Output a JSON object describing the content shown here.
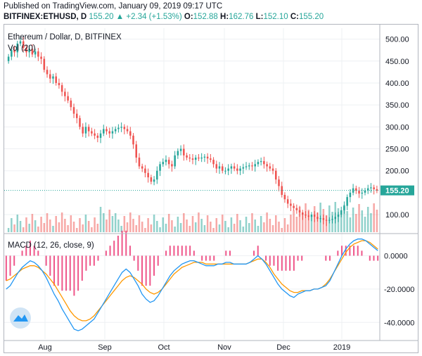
{
  "header": {
    "published": "Published on TradingView.com, January 09, 2019 09:17 UTC",
    "symbol": "BITFINEX:ETHUSD, D",
    "last": "155.20",
    "change": "+2.34 (+1.53%)",
    "o_label": "O:",
    "o_value": "152.88",
    "h_label": "H:",
    "h_value": "162.76",
    "l_label": "L:",
    "l_value": "152.10",
    "c_label": "C:",
    "c_value": "155.20",
    "up_arrow": "▲"
  },
  "colors": {
    "up": "#26a69a",
    "down": "#ef5350",
    "macd_line": "#2196f3",
    "signal_line": "#ff9800",
    "histogram": "#e91e63",
    "price_line": "#26a69a"
  },
  "chart_data": [
    {
      "type": "candlestick",
      "title": "Ethereum / Dollar, D, BITFINEX",
      "indicator_label": "Vol (20)",
      "y_ticks": [
        "500.00",
        "450.00",
        "400.00",
        "350.00",
        "300.00",
        "250.00",
        "200.00",
        "100.00"
      ],
      "ylim": [
        60,
        525
      ],
      "last_price_label": "155.20",
      "last_price": 155.2,
      "x_ticks": [
        "Aug",
        "Sep",
        "Oct",
        "Nov",
        "Dec",
        "2019"
      ],
      "close": [
        460,
        475,
        470,
        490,
        495,
        480,
        470,
        478,
        465,
        472,
        460,
        455,
        430,
        420,
        410,
        415,
        400,
        395,
        380,
        370,
        360,
        345,
        330,
        320,
        300,
        285,
        300,
        290,
        285,
        280,
        275,
        285,
        295,
        290,
        285,
        290,
        295,
        298,
        300,
        295,
        290,
        280,
        260,
        230,
        210,
        205,
        195,
        185,
        175,
        180,
        200,
        215,
        220,
        225,
        215,
        210,
        235,
        245,
        250,
        235,
        230,
        228,
        225,
        230,
        228,
        230,
        232,
        228,
        225,
        215,
        205,
        210,
        200,
        200,
        205,
        210,
        205,
        200,
        205,
        208,
        210,
        212,
        210,
        215,
        220,
        222,
        215,
        210,
        205,
        200,
        180,
        165,
        145,
        135,
        125,
        120,
        115,
        110,
        105,
        100,
        98,
        95,
        100,
        95,
        90,
        92,
        88,
        86,
        88,
        90,
        95,
        100,
        110,
        120,
        140,
        150,
        160,
        155,
        148,
        150,
        155,
        160,
        162,
        158,
        155
      ]
    },
    {
      "type": "line",
      "title": "MACD (12, 26, close, 9)",
      "y_ticks": [
        "0.0000",
        "-20.0000",
        "-40.0000"
      ],
      "ylim": [
        -50,
        12
      ],
      "macd": [
        -20,
        -18,
        -14,
        -10,
        -7,
        -5,
        -3,
        -4,
        -6,
        -9,
        -13,
        -18,
        -23,
        -27,
        -32,
        -36,
        -40,
        -44,
        -45,
        -44,
        -42,
        -40,
        -38,
        -34,
        -30,
        -26,
        -22,
        -18,
        -14,
        -10,
        -8,
        -10,
        -14,
        -18,
        -23,
        -26,
        -28,
        -27,
        -24,
        -20,
        -16,
        -12,
        -9,
        -7,
        -5,
        -4,
        -3,
        -3,
        -4,
        -5,
        -6,
        -6,
        -6,
        -5,
        -5,
        -4,
        -4,
        -5,
        -5,
        -5,
        -5,
        -4,
        -2,
        0,
        -2,
        -5,
        -9,
        -13,
        -17,
        -20,
        -22,
        -24,
        -25,
        -23,
        -22,
        -21,
        -21,
        -20,
        -20,
        -19,
        -18,
        -15,
        -10,
        -5,
        0,
        4,
        7,
        9,
        10,
        10,
        9,
        7,
        5,
        3
      ],
      "signal": [
        -15,
        -14,
        -12,
        -10,
        -8,
        -7,
        -6,
        -6,
        -7,
        -9,
        -11,
        -14,
        -17,
        -21,
        -25,
        -29,
        -33,
        -36,
        -38,
        -39,
        -39,
        -38,
        -36,
        -33,
        -30,
        -27,
        -24,
        -21,
        -18,
        -15,
        -13,
        -12,
        -13,
        -15,
        -17,
        -20,
        -22,
        -23,
        -22,
        -20,
        -17,
        -14,
        -11,
        -9,
        -7,
        -6,
        -5,
        -4,
        -4,
        -4,
        -5,
        -5,
        -5,
        -5,
        -5,
        -5,
        -5,
        -5,
        -5,
        -5,
        -5,
        -4,
        -3,
        -2,
        -2,
        -4,
        -7,
        -11,
        -14,
        -17,
        -19,
        -21,
        -22,
        -22,
        -21,
        -21,
        -21,
        -20,
        -20,
        -19,
        -17,
        -14,
        -10,
        -6,
        -2,
        2,
        5,
        7,
        8,
        9,
        9,
        8,
        6,
        4
      ]
    }
  ],
  "brand_icon": "tradingview-logo-icon"
}
